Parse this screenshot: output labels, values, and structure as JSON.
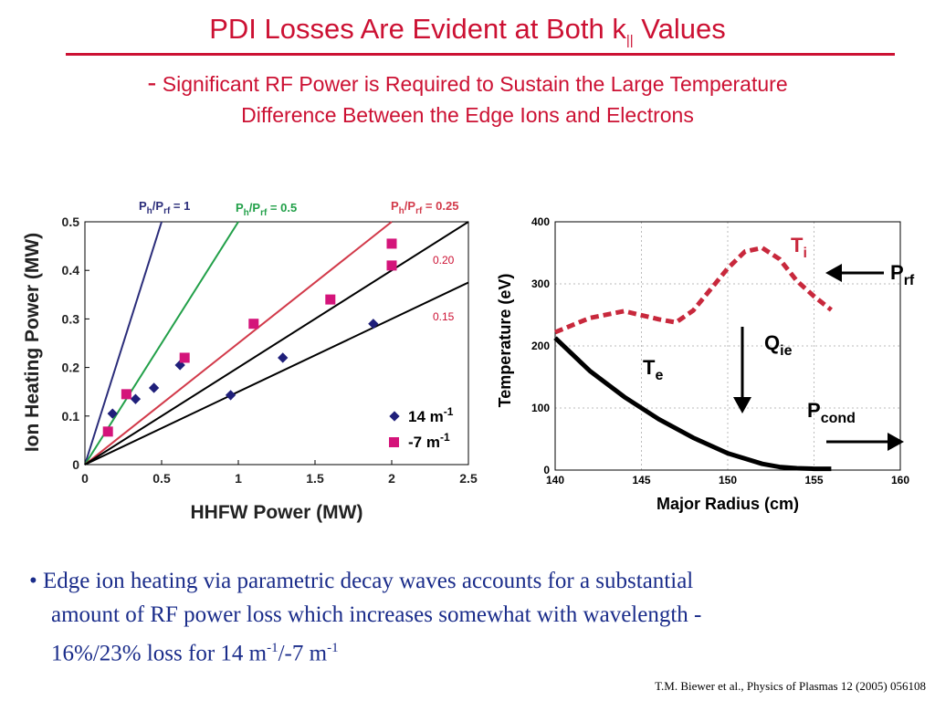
{
  "slide": {
    "title_main": "PDI Losses Are Evident at Both k",
    "title_sub": "||",
    "title_tail": " Values",
    "subtitle_dash": "-",
    "subtitle_line1": "Significant RF Power is Required to Sustain the Large Temperature",
    "subtitle_line2": "Difference Between the Edge Ions and Electrons",
    "bullet_marker": "•",
    "bullet_line1": "Edge ion heating via parametric decay waves accounts for a substantial",
    "bullet_line2": "amount of RF power loss  which increases somewhat with wavelength -",
    "bullet_line3_a": "16%/23% loss for 14 m",
    "bullet_sup1": "-1",
    "bullet_line3_b": "/-7 m",
    "bullet_sup2": "-1",
    "citation": "T.M. Biewer et al., Physics of Plasmas 12 (2005) 056108",
    "colors": {
      "title": "#cc1133",
      "bullet": "#1a2c8a"
    }
  },
  "chart_data": [
    {
      "type": "scatter",
      "xlabel": "HHFW Power (MW)",
      "ylabel": "Ion Heating Power (MW)",
      "xlim": [
        0,
        2.5
      ],
      "ylim": [
        0,
        0.5
      ],
      "xticks": [
        "0",
        "0.5",
        "1",
        "1.5",
        "2",
        "2.5"
      ],
      "yticks": [
        "0",
        "0.1",
        "0.2",
        "0.3",
        "0.4",
        "0.5"
      ],
      "lines": [
        {
          "label": "Ph/Prf = 1",
          "label_base": "P",
          "label_sub1": "h",
          "label_mid": "/P",
          "label_sub2": "rf",
          "label_tail": " = 1",
          "slope": 1.0,
          "color": "#2b2d7a"
        },
        {
          "label": "Ph/Prf = 0.5",
          "label_base": "P",
          "label_sub1": "h",
          "label_mid": "/P",
          "label_sub2": "rf",
          "label_tail": " = 0.5",
          "slope": 0.5,
          "color": "#22a049"
        },
        {
          "label": "Ph/Prf = 0.25",
          "label_base": "P",
          "label_sub1": "h",
          "label_mid": "/P",
          "label_sub2": "rf",
          "label_tail": " = 0.25",
          "slope": 0.25,
          "color": "#d23a4a"
        },
        {
          "label": "0.20",
          "slope": 0.2,
          "color": "#000000"
        },
        {
          "label": "0.15",
          "slope": 0.15,
          "color": "#000000"
        }
      ],
      "series": [
        {
          "name": "14 m-1",
          "legend_main": "14 m",
          "legend_sup": "-1",
          "marker": "diamond",
          "color": "#1f1f7a",
          "x": [
            0.18,
            0.33,
            0.45,
            0.62,
            0.95,
            1.29,
            1.88
          ],
          "y": [
            0.105,
            0.135,
            0.158,
            0.205,
            0.143,
            0.22,
            0.29
          ]
        },
        {
          "name": "-7 m-1",
          "legend_main": "-7 m",
          "legend_sup": "-1",
          "marker": "square",
          "color": "#d4147a",
          "x": [
            0.15,
            0.27,
            0.65,
            1.1,
            1.6,
            2.0,
            2.0
          ],
          "y": [
            0.068,
            0.145,
            0.22,
            0.29,
            0.34,
            0.41,
            0.455
          ]
        }
      ]
    },
    {
      "type": "line",
      "xlabel": "Major Radius (cm)",
      "ylabel": "Temperature (eV)",
      "xlim": [
        140,
        160
      ],
      "ylim": [
        0,
        400
      ],
      "xticks": [
        "140",
        "145",
        "150",
        "155",
        "160"
      ],
      "yticks": [
        "0",
        "100",
        "200",
        "300",
        "400"
      ],
      "series": [
        {
          "name": "Ti",
          "label_main": "T",
          "label_sub": "i",
          "style": "dashed",
          "color": "#c8283c",
          "x": [
            140,
            142,
            144,
            146,
            147,
            148,
            150,
            151,
            152,
            153,
            154,
            155,
            156
          ],
          "y": [
            222,
            245,
            256,
            243,
            238,
            257,
            325,
            352,
            358,
            340,
            305,
            280,
            258
          ]
        },
        {
          "name": "Te",
          "label_main": "T",
          "label_sub": "e",
          "style": "solid",
          "color": "#000000",
          "x": [
            140,
            142,
            144,
            146,
            148,
            150,
            152,
            153,
            154,
            155,
            156
          ],
          "y": [
            213,
            160,
            118,
            82,
            52,
            27,
            10,
            5,
            3,
            2,
            2
          ]
        }
      ],
      "annotations": [
        {
          "text": "Prf",
          "main": "P",
          "sub": "rf"
        },
        {
          "text": "Qie",
          "main": "Q",
          "sub": "ie"
        },
        {
          "text": "Pcond",
          "main": "P",
          "sub": "cond"
        }
      ]
    }
  ]
}
